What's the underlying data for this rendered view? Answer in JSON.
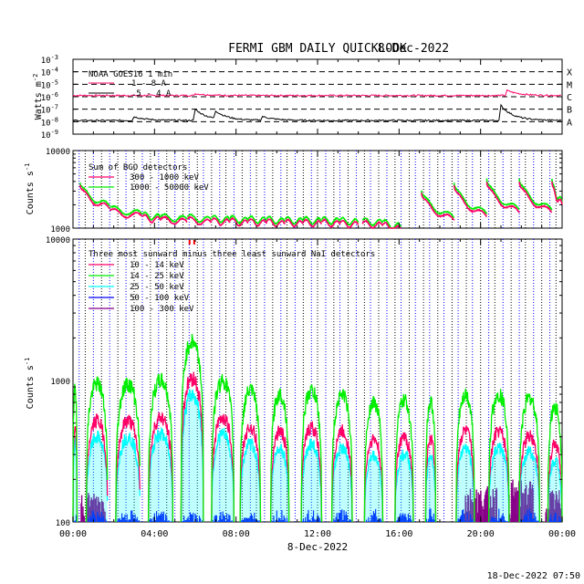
{
  "title": "FERMI GBM DAILY QUICKLOOK",
  "date": "8-Dec-2022",
  "footer_timestamp": "18-Dec-2022 07:50",
  "colors": {
    "goes_long": "#000000",
    "goes_short": "#ff0066",
    "bgo_low": "#ff0066",
    "bgo_high": "#00ee00",
    "nai_10_14": "#ff0066",
    "nai_14_25": "#00ee00",
    "nai_25_50": "#00ffff",
    "nai_50_100": "#0000ff",
    "nai_100_300": "#880088",
    "saa_lines": "#0000ff",
    "orbit_lines": "#000000"
  },
  "chart_data": [
    {
      "type": "line",
      "panel": "goes",
      "ylabel": "Watts m",
      "ylabel_sup": "-2",
      "ytick_labels": [
        {
          "base": "10",
          "exp": "-3"
        },
        {
          "base": "10",
          "exp": "-4"
        },
        {
          "base": "10",
          "exp": "-5"
        },
        {
          "base": "10",
          "exp": "-6"
        },
        {
          "base": "10",
          "exp": "-7"
        },
        {
          "base": "10",
          "exp": "-8"
        },
        {
          "base": "10",
          "exp": "-9"
        }
      ],
      "ylim_log10": [
        -9,
        -3
      ],
      "flare_classes": [
        {
          "label": "X",
          "log10": -4
        },
        {
          "label": "M",
          "log10": -5
        },
        {
          "label": "C",
          "log10": -6
        },
        {
          "label": "B",
          "log10": -7
        },
        {
          "label": "A",
          "log10": -8
        }
      ],
      "legend_title": "NOAA GOES16 1 min",
      "series": [
        {
          "name": "1 - 8 A",
          "color_key": "goes_short",
          "base_log10": -5.9,
          "bumps": [
            {
              "t": 21.3,
              "h": 0.4
            },
            {
              "t": 6.0,
              "h": 0.15
            }
          ]
        },
        {
          "name": ".5 - 4 A",
          "color_key": "goes_long",
          "base_log10": -7.9,
          "bumps": [
            {
              "t": 21.0,
              "h": 1.2
            },
            {
              "t": 6.0,
              "h": 0.9
            },
            {
              "t": 7.0,
              "h": 0.6
            },
            {
              "t": 3.0,
              "h": 0.3
            },
            {
              "t": 9.3,
              "h": 0.3
            }
          ]
        }
      ]
    },
    {
      "type": "line",
      "panel": "bgo",
      "ylabel": "Counts s",
      "ylabel_sup": "-1",
      "ytick_labels": [
        "10000",
        "1000"
      ],
      "ylim_log10": [
        3,
        4
      ],
      "legend_title": "Sum of BGO detectors",
      "series": [
        {
          "name": "300 - 1000 keV",
          "color_key": "bgo_low"
        },
        {
          "name": "1000 - 50000 keV",
          "color_key": "bgo_high"
        }
      ],
      "passes": [
        {
          "start": 0.35,
          "end": 1.8,
          "peak": 3.55,
          "low": 3.25
        },
        {
          "start": 1.8,
          "end": 3.4,
          "peak": 3.24,
          "low": 3.15
        },
        {
          "start": 3.4,
          "end": 4.3,
          "peak": 3.15,
          "low": 3.1
        },
        {
          "start": 4.3,
          "end": 5.6,
          "peak": 3.12,
          "low": 3.08
        },
        {
          "start": 5.6,
          "end": 6.8,
          "peak": 3.12,
          "low": 3.07
        },
        {
          "start": 6.8,
          "end": 7.7,
          "peak": 3.1,
          "low": 3.07
        },
        {
          "start": 7.7,
          "end": 8.6,
          "peak": 3.1,
          "low": 3.06
        },
        {
          "start": 8.6,
          "end": 9.5,
          "peak": 3.09,
          "low": 3.06
        },
        {
          "start": 9.5,
          "end": 10.4,
          "peak": 3.09,
          "low": 3.05
        },
        {
          "start": 10.4,
          "end": 11.3,
          "peak": 3.08,
          "low": 3.05
        },
        {
          "start": 11.3,
          "end": 12.2,
          "peak": 3.08,
          "low": 3.05
        },
        {
          "start": 12.2,
          "end": 13.1,
          "peak": 3.08,
          "low": 3.05
        },
        {
          "start": 13.1,
          "end": 14.0,
          "peak": 3.07,
          "low": 3.04
        },
        {
          "start": 14.2,
          "end": 15.2,
          "peak": 3.07,
          "low": 3.03
        },
        {
          "start": 15.2,
          "end": 16.1,
          "peak": 3.06,
          "low": 2.98
        },
        {
          "start": 17.1,
          "end": 18.7,
          "peak": 3.45,
          "low": 3.1
        },
        {
          "start": 18.7,
          "end": 20.3,
          "peak": 3.55,
          "low": 3.15
        },
        {
          "start": 20.3,
          "end": 21.9,
          "peak": 3.6,
          "low": 3.2
        },
        {
          "start": 21.9,
          "end": 23.5,
          "peak": 3.6,
          "low": 3.2
        },
        {
          "start": 23.5,
          "end": 24.0,
          "peak": 3.6,
          "low": 3.3
        }
      ]
    },
    {
      "type": "line",
      "panel": "nai",
      "ylabel": "Counts s",
      "ylabel_sup": "-1",
      "ytick_labels": [
        "10000",
        "1000",
        "100"
      ],
      "ylim_log10": [
        2,
        4
      ],
      "legend_title": "Three most sunward minus three least sunward NaI detectors",
      "series": [
        {
          "name": "10 - 14 keV",
          "color_key": "nai_10_14"
        },
        {
          "name": "14 - 25 keV",
          "color_key": "nai_14_25"
        },
        {
          "name": "25 - 50 keV",
          "color_key": "nai_25_50"
        },
        {
          "name": "50 - 100 keV",
          "color_key": "nai_50_100"
        },
        {
          "name": "100 - 300 keV",
          "color_key": "nai_100_300"
        }
      ],
      "passes": [
        {
          "start": 0.0,
          "end": 0.2,
          "peak_14_25": 880
        },
        {
          "start": 0.65,
          "end": 1.7,
          "peak_14_25": 950
        },
        {
          "start": 2.1,
          "end": 3.3,
          "peak_14_25": 950
        },
        {
          "start": 3.7,
          "end": 4.9,
          "peak_14_25": 1000
        },
        {
          "start": 5.3,
          "end": 6.4,
          "peak_14_25": 1900
        },
        {
          "start": 6.8,
          "end": 7.9,
          "peak_14_25": 1000
        },
        {
          "start": 8.2,
          "end": 9.2,
          "peak_14_25": 850
        },
        {
          "start": 9.7,
          "end": 10.6,
          "peak_14_25": 800
        },
        {
          "start": 11.2,
          "end": 12.2,
          "peak_14_25": 850
        },
        {
          "start": 12.7,
          "end": 13.7,
          "peak_14_25": 800
        },
        {
          "start": 14.3,
          "end": 15.2,
          "peak_14_25": 700
        },
        {
          "start": 15.8,
          "end": 16.7,
          "peak_14_25": 720
        },
        {
          "start": 17.3,
          "end": 17.8,
          "peak_14_25": 700
        },
        {
          "start": 18.8,
          "end": 19.7,
          "peak_14_25": 800
        },
        {
          "start": 20.4,
          "end": 21.4,
          "peak_14_25": 800
        },
        {
          "start": 21.9,
          "end": 22.9,
          "peak_14_25": 750
        },
        {
          "start": 23.3,
          "end": 24.0,
          "peak_14_25": 650
        }
      ],
      "purple_patches": [
        {
          "start": 0.4,
          "end": 1.6,
          "top": 165
        },
        {
          "start": 19.2,
          "end": 20.8,
          "top": 180
        },
        {
          "start": 21.4,
          "end": 22.6,
          "top": 200
        },
        {
          "start": 23.2,
          "end": 24.0,
          "top": 170
        }
      ],
      "flare_markers": [
        {
          "t": 5.72
        },
        {
          "t": 5.95
        }
      ]
    }
  ],
  "x_axis": {
    "label": "8-Dec-2022",
    "range_hours": [
      0,
      24
    ],
    "tick_labels": [
      "00:00",
      "04:00",
      "08:00",
      "12:00",
      "16:00",
      "20:00",
      "00:00"
    ]
  },
  "saa_dotted_lines_hours": [
    0.3,
    1.0,
    1.8,
    2.6,
    3.4,
    4.2,
    5.0,
    5.7,
    6.4,
    7.2,
    7.9,
    8.7,
    9.4,
    10.2,
    10.9,
    11.7,
    12.4,
    13.1,
    13.9,
    14.6,
    15.4,
    16.1,
    16.8,
    17.5,
    18.2,
    18.9,
    19.6,
    20.4,
    21.1,
    21.9,
    22.6,
    23.4
  ],
  "orbit_dotted_lines_hours": [
    0.6,
    1.4,
    2.2,
    3.0,
    3.8,
    4.6,
    5.4,
    6.1,
    6.8,
    7.5,
    8.3,
    9.0,
    9.8,
    10.5,
    11.3,
    12.0,
    12.8,
    13.5,
    14.3,
    15.0,
    15.8,
    16.5,
    17.2,
    17.9,
    18.6,
    19.3,
    20.0,
    20.7,
    21.5,
    22.2,
    23.0,
    23.7
  ]
}
